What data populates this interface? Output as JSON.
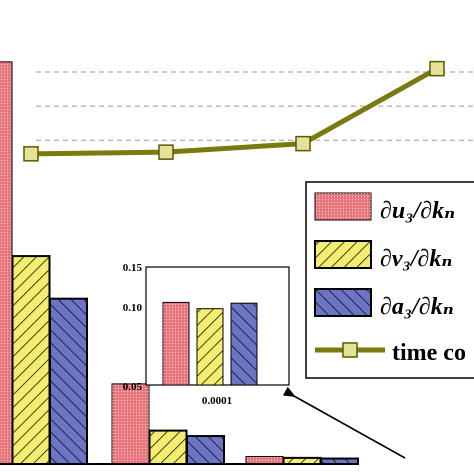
{
  "chart_data": [
    {
      "type": "bar",
      "role": "main",
      "categories": [
        "",
        "",
        ""
      ],
      "series": [
        {
          "name": "∂u₃/∂kₙ",
          "values": [
            1.18,
            0.235,
            0.022
          ],
          "color": "#e8737a"
        },
        {
          "name": "∂v₃/∂kₙ",
          "values": [
            0.61,
            0.098,
            0.018
          ],
          "color": "#f4ee70"
        },
        {
          "name": "∂a₃/∂kₙ",
          "values": [
            0.485,
            0.082,
            0.016
          ],
          "color": "#6c74c6"
        }
      ],
      "line": {
        "name": "time co",
        "x": [
          0,
          1,
          2,
          3
        ],
        "values": [
          0.91,
          0.915,
          0.94,
          1.16
        ],
        "color": "#7a7a10"
      },
      "ylim": [
        0,
        1.2
      ],
      "grid": "horizontal dashed",
      "legend": {
        "placement": "right",
        "entries": [
          {
            "label": "∂u₃/∂kₙ",
            "series": "u"
          },
          {
            "label": "∂v₃/∂kₙ",
            "series": "v"
          },
          {
            "label": "∂a₃/∂kₙ",
            "series": "a"
          },
          {
            "label": "time co",
            "series": "line"
          }
        ]
      }
    },
    {
      "type": "bar",
      "role": "inset",
      "categories": [
        "0.0001"
      ],
      "series": [
        {
          "name": "∂u₃/∂kₙ",
          "values": [
            0.105
          ]
        },
        {
          "name": "∂v₃/∂kₙ",
          "values": [
            0.097
          ]
        },
        {
          "name": "∂a₃/∂kₙ",
          "values": [
            0.104
          ]
        }
      ],
      "ylim": [
        0,
        0.15
      ],
      "yticks": [
        "0.15",
        "0.10",
        "0.05"
      ]
    }
  ]
}
